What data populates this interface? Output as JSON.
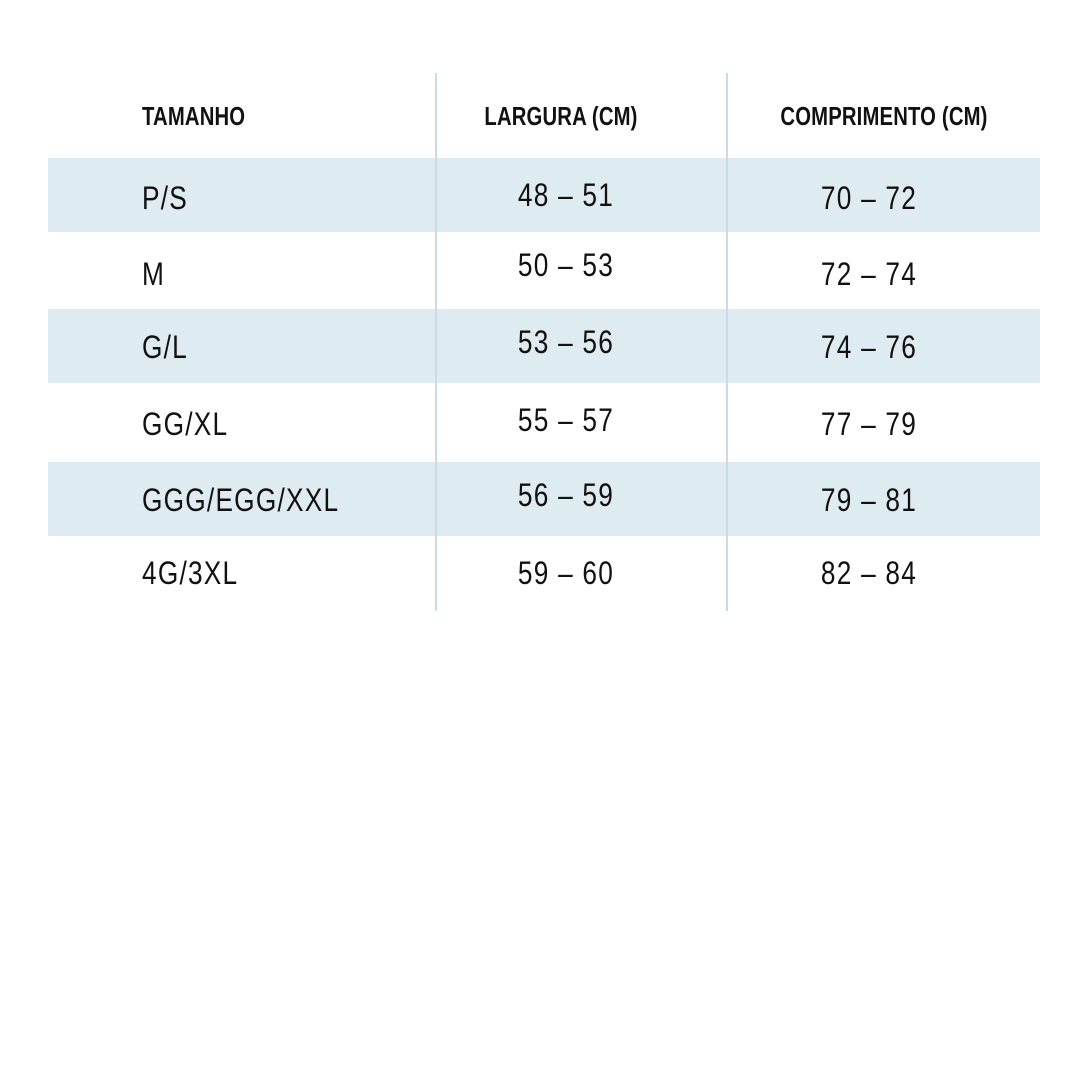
{
  "table": {
    "headers": [
      "TAMANHO",
      "LARGURA (CM)",
      "COMPRIMENTO (CM)"
    ],
    "rows": [
      {
        "tamanho": "P/S",
        "largura": "48 – 51",
        "comprimento": "70 – 72"
      },
      {
        "tamanho": "M",
        "largura": "50 – 53",
        "comprimento": "72 – 74"
      },
      {
        "tamanho": "G/L",
        "largura": "53 – 56",
        "comprimento": "74 – 76"
      },
      {
        "tamanho": "GG/XL",
        "largura": "55 – 57",
        "comprimento": "77 – 79"
      },
      {
        "tamanho": "GGG/EGG/XXL",
        "largura": "56 – 59",
        "comprimento": "79 – 81"
      },
      {
        "tamanho": "4G/3XL",
        "largura": "59 – 60",
        "comprimento": "82 – 84"
      }
    ]
  },
  "colors": {
    "band": "#deebf1",
    "divider": "#c9dbe4",
    "text": "#111111"
  }
}
